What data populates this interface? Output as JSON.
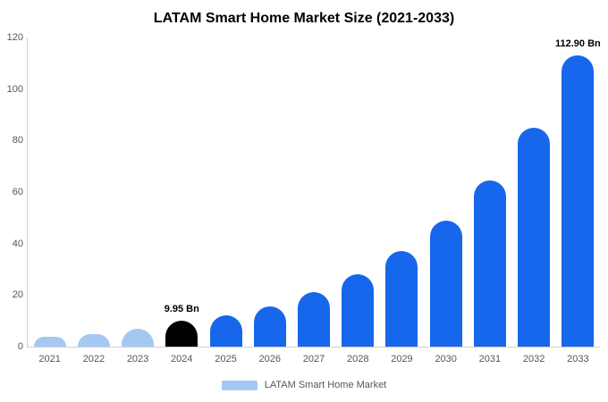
{
  "chart_data": {
    "type": "bar",
    "title": "LATAM Smart Home Market Size (2021-2033)",
    "categories": [
      "2021",
      "2022",
      "2023",
      "2024",
      "2025",
      "2026",
      "2027",
      "2028",
      "2029",
      "2030",
      "2031",
      "2032",
      "2033"
    ],
    "values": [
      3.8,
      5.0,
      6.8,
      9.95,
      12.0,
      15.5,
      21.0,
      28.0,
      37.0,
      49.0,
      64.5,
      85.0,
      112.9
    ],
    "bar_labels": [
      "",
      "",
      "",
      "9.95 Bn",
      "",
      "",
      "",
      "",
      "",
      "",
      "",
      "",
      "112.90 Bn"
    ],
    "bar_colors": [
      "#a4c8f2",
      "#a4c8f2",
      "#a4c8f2",
      "#000000",
      "#1667eb",
      "#1667eb",
      "#1667eb",
      "#1667eb",
      "#1667eb",
      "#1667eb",
      "#1667eb",
      "#1667eb",
      "#1667eb"
    ],
    "ylim": [
      0,
      120
    ],
    "yticks": [
      0,
      20,
      40,
      60,
      80,
      100,
      120
    ],
    "xlabel": "",
    "ylabel": "",
    "grid": false,
    "legend": {
      "label": "LATAM Smart Home Market",
      "swatch_color": "#a4c8f2",
      "position": "bottom"
    }
  }
}
